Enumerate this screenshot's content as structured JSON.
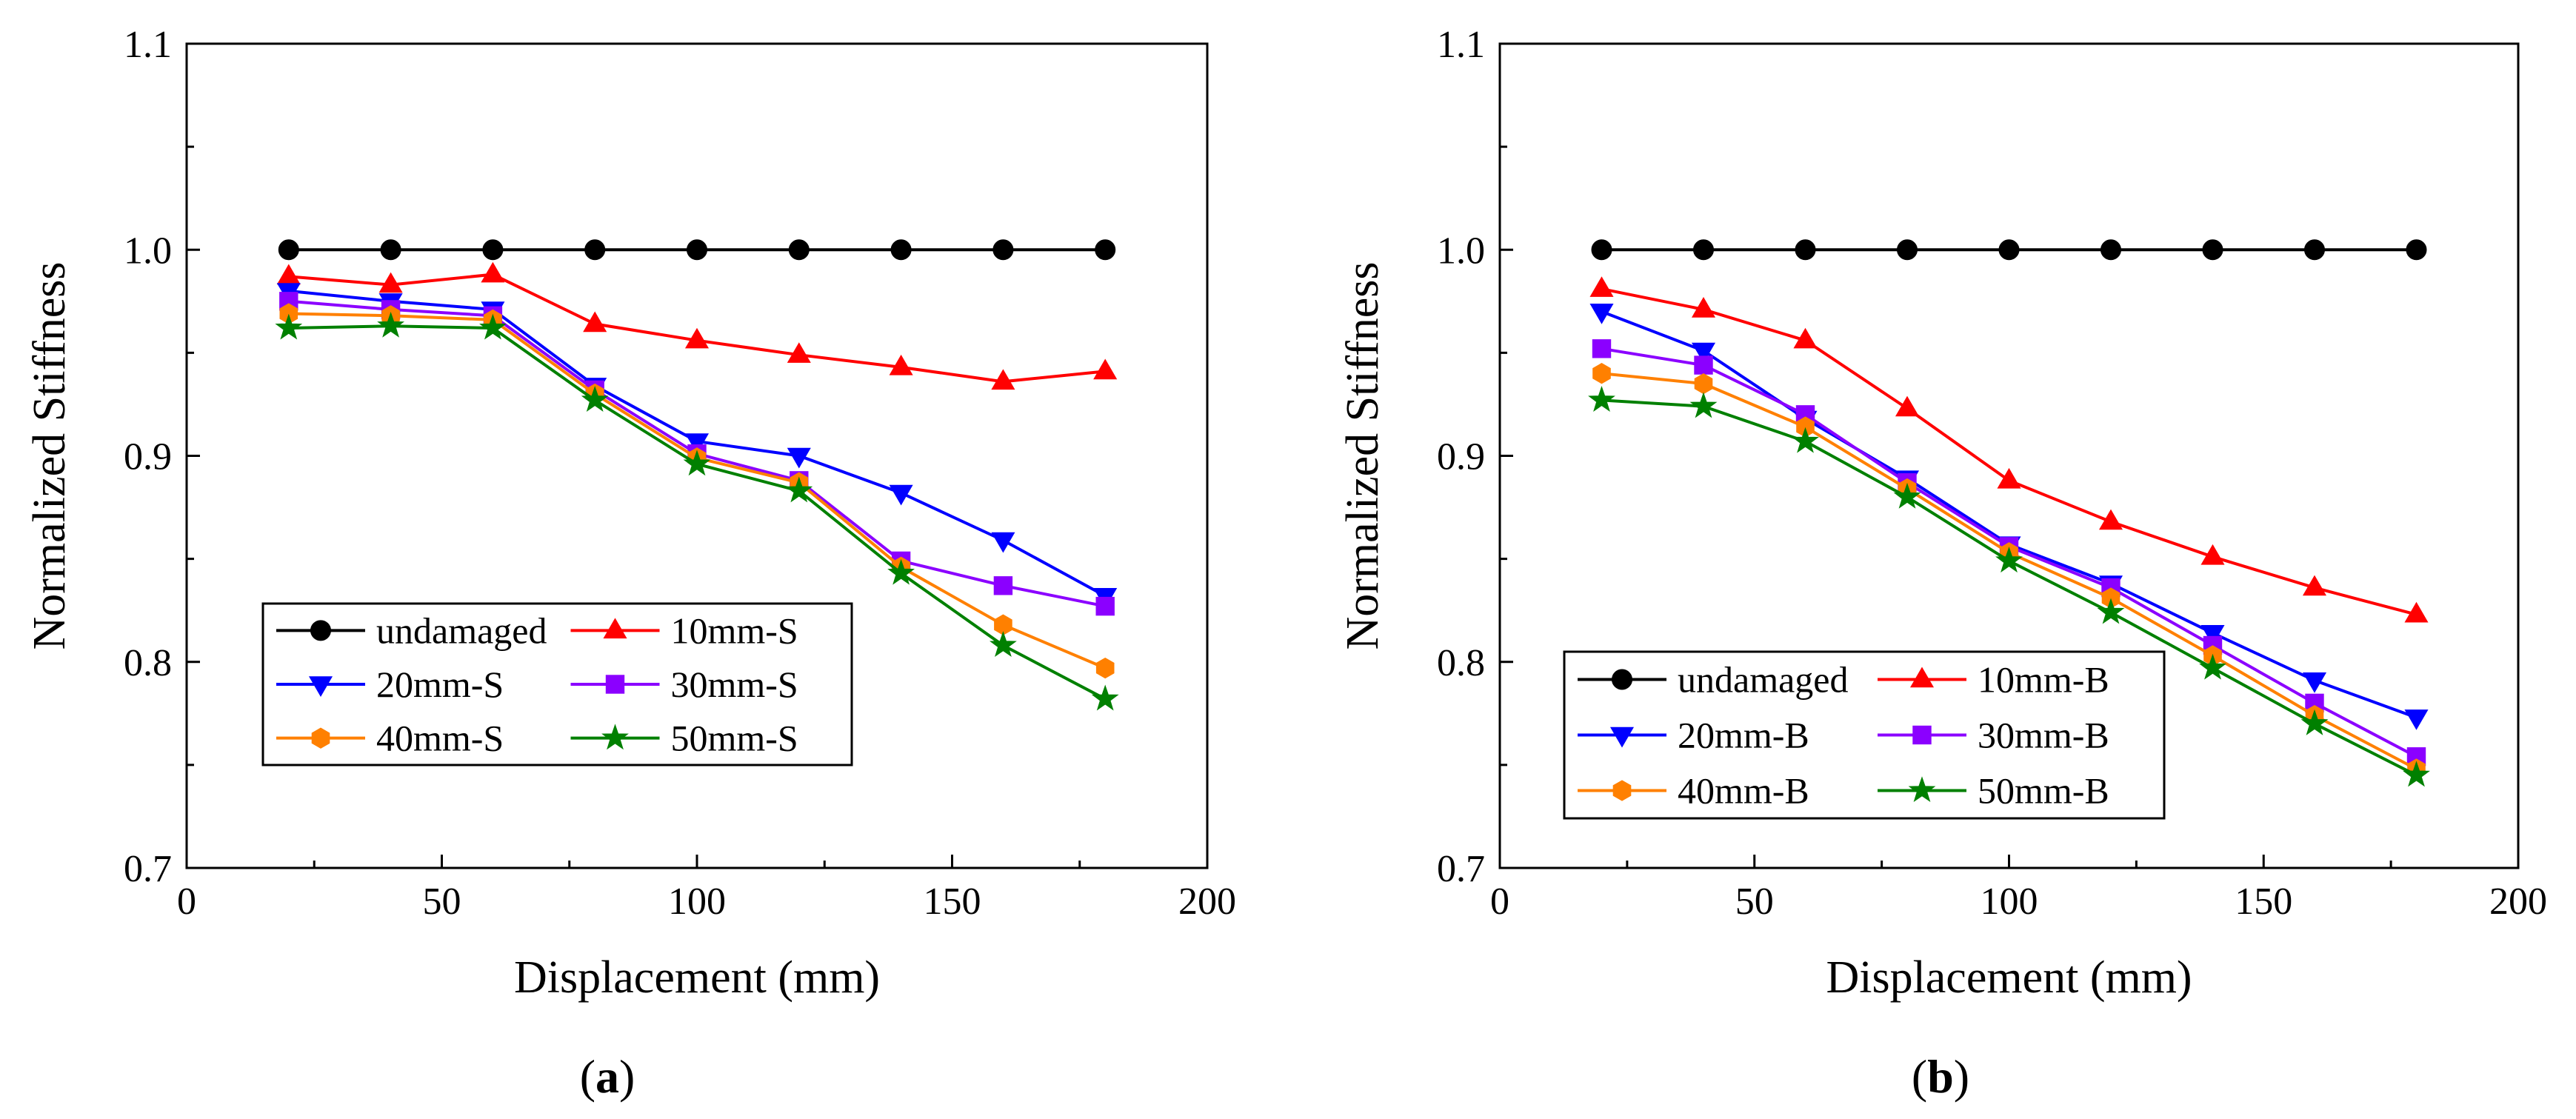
{
  "chart_data": [
    {
      "type": "line",
      "caption": "a",
      "xlabel": "Displacement (mm)",
      "ylabel": "Normalized Stiffness",
      "xlim": [
        0,
        200
      ],
      "ylim": [
        0.7,
        1.1
      ],
      "xticks": [
        "0",
        "50",
        "100",
        "150",
        "200"
      ],
      "yticks": [
        "0.7",
        "0.8",
        "0.9",
        "1.0",
        "1.1"
      ],
      "grid": false,
      "legend_position": "bottom-left",
      "x": [
        20,
        40,
        60,
        80,
        100,
        120,
        140,
        160,
        180
      ],
      "series": [
        {
          "name": "undamaged",
          "color": "#000000",
          "marker": "circle",
          "values": [
            1.0,
            1.0,
            1.0,
            1.0,
            1.0,
            1.0,
            1.0,
            1.0,
            1.0
          ]
        },
        {
          "name": "10mm-S",
          "color": "#ff0000",
          "marker": "triangle-up",
          "values": [
            0.987,
            0.983,
            0.988,
            0.964,
            0.956,
            0.949,
            0.943,
            0.936,
            0.941
          ]
        },
        {
          "name": "20mm-S",
          "color": "#0000ff",
          "marker": "triangle-down",
          "values": [
            0.98,
            0.975,
            0.971,
            0.934,
            0.907,
            0.9,
            0.882,
            0.859,
            0.832
          ]
        },
        {
          "name": "30mm-S",
          "color": "#8b00ff",
          "marker": "square",
          "values": [
            0.975,
            0.971,
            0.968,
            0.932,
            0.901,
            0.888,
            0.849,
            0.837,
            0.827
          ]
        },
        {
          "name": "40mm-S",
          "color": "#ff8000",
          "marker": "hexagon",
          "values": [
            0.969,
            0.968,
            0.966,
            0.93,
            0.899,
            0.887,
            0.846,
            0.818,
            0.797
          ]
        },
        {
          "name": "50mm-S",
          "color": "#008000",
          "marker": "star",
          "values": [
            0.962,
            0.963,
            0.962,
            0.927,
            0.896,
            0.883,
            0.843,
            0.808,
            0.782
          ]
        }
      ]
    },
    {
      "type": "line",
      "caption": "b",
      "xlabel": "Displacement (mm)",
      "ylabel": "Normalized Stiffness",
      "xlim": [
        0,
        200
      ],
      "ylim": [
        0.7,
        1.1
      ],
      "xticks": [
        "0",
        "50",
        "100",
        "150",
        "200"
      ],
      "yticks": [
        "0.7",
        "0.8",
        "0.9",
        "1.0",
        "1.1"
      ],
      "grid": false,
      "legend_position": "bottom-left",
      "x": [
        20,
        40,
        60,
        80,
        100,
        120,
        140,
        160,
        180
      ],
      "series": [
        {
          "name": "undamaged",
          "color": "#000000",
          "marker": "circle",
          "values": [
            1.0,
            1.0,
            1.0,
            1.0,
            1.0,
            1.0,
            1.0,
            1.0,
            1.0
          ]
        },
        {
          "name": "10mm-B",
          "color": "#ff0000",
          "marker": "triangle-up",
          "values": [
            0.981,
            0.971,
            0.956,
            0.923,
            0.888,
            0.868,
            0.851,
            0.836,
            0.823
          ]
        },
        {
          "name": "20mm-B",
          "color": "#0000ff",
          "marker": "triangle-down",
          "values": [
            0.97,
            0.951,
            0.918,
            0.889,
            0.857,
            0.838,
            0.814,
            0.791,
            0.773
          ]
        },
        {
          "name": "30mm-B",
          "color": "#8b00ff",
          "marker": "square",
          "values": [
            0.952,
            0.944,
            0.92,
            0.887,
            0.856,
            0.836,
            0.808,
            0.78,
            0.754
          ]
        },
        {
          "name": "40mm-B",
          "color": "#ff8000",
          "marker": "hexagon",
          "values": [
            0.94,
            0.935,
            0.914,
            0.884,
            0.853,
            0.831,
            0.803,
            0.774,
            0.748
          ]
        },
        {
          "name": "50mm-B",
          "color": "#008000",
          "marker": "star",
          "values": [
            0.927,
            0.924,
            0.907,
            0.88,
            0.849,
            0.824,
            0.797,
            0.77,
            0.745
          ]
        }
      ]
    }
  ]
}
